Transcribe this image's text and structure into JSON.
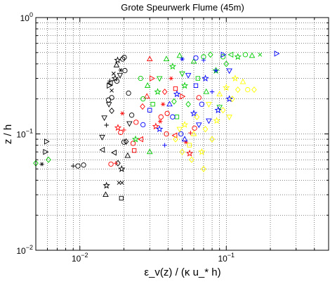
{
  "chart_data": {
    "type": "scatter",
    "title": "Grote Speurwerk Flume (45m)",
    "xlabel": "ε_v(z) / (κ u_* h)",
    "ylabel": "z / h",
    "x_scale": "log",
    "y_scale": "log",
    "xlim": [
      0.005,
      0.5
    ],
    "ylim": [
      0.01,
      1
    ],
    "x_ticks": [
      {
        "value": 0.01,
        "base": "10",
        "exp": "−2"
      },
      {
        "value": 0.1,
        "base": "10",
        "exp": "−1"
      }
    ],
    "y_ticks": [
      {
        "value": 0.01,
        "base": "10",
        "exp": "−2"
      },
      {
        "value": 0.1,
        "base": "10",
        "exp": "−1"
      },
      {
        "value": 1,
        "base": "10",
        "exp": "0"
      }
    ],
    "grid": true,
    "legend": "none",
    "colors": {
      "black": "#000000",
      "red": "#ff0000",
      "green": "#00cc00",
      "blue": "#0000ff",
      "yellow": "#ffff00"
    },
    "series": [
      {
        "color": "black",
        "points": [
          [
            0.0055,
            0.055,
            "asterisk"
          ],
          [
            0.0058,
            0.07,
            "triangle-right"
          ],
          [
            0.0059,
            0.086,
            "triangle-right"
          ],
          [
            0.009,
            0.053,
            "plus"
          ],
          [
            0.0097,
            0.053,
            "circle"
          ],
          [
            0.0106,
            0.054,
            "circle"
          ],
          [
            0.0152,
            0.036,
            "star"
          ],
          [
            0.015,
            0.03,
            "triangle-up"
          ],
          [
            0.0143,
            0.073,
            "triangle-left"
          ],
          [
            0.0142,
            0.094,
            "triangle-down"
          ],
          [
            0.0152,
            0.119,
            "plus"
          ],
          [
            0.0147,
            0.138,
            "triangle-down"
          ],
          [
            0.0165,
            0.158,
            "diamond"
          ],
          [
            0.0158,
            0.18,
            "triangle-down"
          ],
          [
            0.0157,
            0.196,
            "circle"
          ],
          [
            0.0165,
            0.205,
            "circle"
          ],
          [
            0.0165,
            0.236,
            "x"
          ],
          [
            0.0158,
            0.26,
            "triangle-right"
          ],
          [
            0.016,
            0.285,
            "plus"
          ],
          [
            0.0162,
            0.275,
            "triangle-left"
          ],
          [
            0.0174,
            0.3,
            "star"
          ],
          [
            0.0179,
            0.284,
            "circle"
          ],
          [
            0.0188,
            0.32,
            "triangle-down"
          ],
          [
            0.019,
            0.353,
            "asterisk"
          ],
          [
            0.0196,
            0.44,
            "circle"
          ],
          [
            0.0201,
            0.455,
            "circle"
          ],
          [
            0.0203,
            0.35,
            "circle"
          ],
          [
            0.0172,
            0.069,
            "triangle-left"
          ],
          [
            0.0182,
            0.056,
            "diamond"
          ],
          [
            0.0193,
            0.05,
            "star"
          ],
          [
            0.02,
            0.085,
            "circle"
          ],
          [
            0.0207,
            0.086,
            "diamond"
          ],
          [
            0.0212,
            0.065,
            "triangle-up"
          ],
          [
            0.0185,
            0.038,
            "x"
          ],
          [
            0.0194,
            0.038,
            "x"
          ],
          [
            0.0192,
            0.028,
            "square"
          ],
          [
            0.0218,
            0.123,
            "triangle-down"
          ],
          [
            0.0215,
            0.224,
            "circle"
          ],
          [
            0.0226,
            0.145,
            "circle"
          ],
          [
            0.017,
            0.33,
            "x"
          ],
          [
            0.0178,
            0.39,
            "triangle-up"
          ],
          [
            0.0181,
            0.43,
            "star"
          ]
        ]
      },
      {
        "color": "red",
        "points": [
          [
            0.0163,
            0.055,
            "circle"
          ],
          [
            0.0176,
            0.056,
            "plus"
          ],
          [
            0.0182,
            0.113,
            "star"
          ],
          [
            0.019,
            0.103,
            "circle"
          ],
          [
            0.02,
            0.108,
            "plus"
          ],
          [
            0.0195,
            0.15,
            "asterisk"
          ],
          [
            0.0231,
            0.083,
            "circle"
          ],
          [
            0.0235,
            0.072,
            "square"
          ],
          [
            0.0262,
            0.09,
            "triangle-left"
          ],
          [
            0.0242,
            0.126,
            "circle"
          ],
          [
            0.0268,
            0.172,
            "diamond"
          ],
          [
            0.0287,
            0.21,
            "triangle-up"
          ],
          [
            0.031,
            0.3,
            "triangle-right"
          ],
          [
            0.03,
            0.44,
            "triangle-up"
          ],
          [
            0.0354,
            0.128,
            "asterisk"
          ],
          [
            0.0358,
            0.14,
            "circle"
          ],
          [
            0.033,
            0.116,
            "star"
          ],
          [
            0.037,
            0.18,
            "asterisk"
          ],
          [
            0.038,
            0.23,
            "diamond"
          ],
          [
            0.042,
            0.3,
            "asterisk"
          ],
          [
            0.0395,
            0.15,
            "circle"
          ],
          [
            0.039,
            0.1,
            "circle"
          ],
          [
            0.0447,
            0.097,
            "triangle-left"
          ],
          [
            0.053,
            0.085,
            "asterisk"
          ],
          [
            0.0562,
            0.068,
            "star"
          ],
          [
            0.057,
            0.102,
            "plus"
          ],
          [
            0.0607,
            0.112,
            "circle"
          ],
          [
            0.045,
            0.245,
            "square"
          ],
          [
            0.05,
            0.21,
            "triangle-right"
          ],
          [
            0.065,
            0.205,
            "circle"
          ]
        ]
      },
      {
        "color": "green",
        "points": [
          [
            0.005,
            0.056,
            "diamond"
          ],
          [
            0.0061,
            0.06,
            "diamond"
          ],
          [
            0.024,
            0.09,
            "star"
          ],
          [
            0.027,
            0.2,
            "circle"
          ],
          [
            0.029,
            0.26,
            "triangle-up"
          ],
          [
            0.0315,
            0.18,
            "square"
          ],
          [
            0.034,
            0.23,
            "star"
          ],
          [
            0.035,
            0.3,
            "triangle-down"
          ],
          [
            0.039,
            0.44,
            "triangle-up"
          ],
          [
            0.043,
            0.38,
            "star"
          ],
          [
            0.044,
            0.19,
            "diamond"
          ],
          [
            0.046,
            0.14,
            "square"
          ],
          [
            0.05,
            0.33,
            "triangle-down"
          ],
          [
            0.052,
            0.26,
            "star"
          ],
          [
            0.055,
            0.18,
            "diamond"
          ],
          [
            0.06,
            0.42,
            "triangle-up"
          ],
          [
            0.064,
            0.3,
            "square"
          ],
          [
            0.07,
            0.46,
            "circle"
          ],
          [
            0.073,
            0.23,
            "triangle-up"
          ],
          [
            0.078,
            0.48,
            "diamond"
          ],
          [
            0.085,
            0.35,
            "star"
          ],
          [
            0.09,
            0.17,
            "triangle-down"
          ],
          [
            0.1,
            0.4,
            "diamond"
          ],
          [
            0.108,
            0.48,
            "triangle-left"
          ],
          [
            0.12,
            0.46,
            "star"
          ],
          [
            0.135,
            0.48,
            "circle"
          ],
          [
            0.15,
            0.47,
            "triangle-up"
          ],
          [
            0.17,
            0.48,
            "x"
          ],
          [
            0.03,
            0.07,
            "triangle-up"
          ],
          [
            0.026,
            0.3,
            "circle"
          ],
          [
            0.095,
            0.46,
            "circle"
          ],
          [
            0.048,
            0.47,
            "triangle-up"
          ]
        ]
      },
      {
        "color": "blue",
        "points": [
          [
            0.027,
            0.12,
            "circle"
          ],
          [
            0.03,
            0.16,
            "square"
          ],
          [
            0.035,
            0.11,
            "star"
          ],
          [
            0.038,
            0.08,
            "plus"
          ],
          [
            0.041,
            0.18,
            "triangle-up"
          ],
          [
            0.043,
            0.14,
            "circle"
          ],
          [
            0.046,
            0.22,
            "star"
          ],
          [
            0.049,
            0.1,
            "circle"
          ],
          [
            0.052,
            0.09,
            "triangle-up"
          ],
          [
            0.055,
            0.32,
            "triangle-down"
          ],
          [
            0.06,
            0.15,
            "star"
          ],
          [
            0.062,
            0.26,
            "square"
          ],
          [
            0.065,
            0.12,
            "triangle-down"
          ],
          [
            0.068,
            0.18,
            "circle"
          ],
          [
            0.072,
            0.3,
            "star"
          ],
          [
            0.076,
            0.13,
            "triangle-down"
          ],
          [
            0.08,
            0.23,
            "plus"
          ],
          [
            0.085,
            0.35,
            "asterisk"
          ],
          [
            0.088,
            0.16,
            "star"
          ],
          [
            0.095,
            0.48,
            "triangle-right"
          ],
          [
            0.105,
            0.35,
            "triangle-down"
          ],
          [
            0.05,
            0.44,
            "asterisk"
          ],
          [
            0.062,
            0.45,
            "circle"
          ],
          [
            0.22,
            0.49,
            "triangle-right"
          ],
          [
            0.105,
            0.2,
            "star"
          ],
          [
            0.07,
            0.43,
            "plus"
          ]
        ]
      },
      {
        "color": "yellow",
        "points": [
          [
            0.045,
            0.09,
            "diamond"
          ],
          [
            0.048,
            0.11,
            "triangle-down"
          ],
          [
            0.05,
            0.07,
            "diamond"
          ],
          [
            0.052,
            0.12,
            "star"
          ],
          [
            0.056,
            0.08,
            "square"
          ],
          [
            0.06,
            0.1,
            "triangle-up"
          ],
          [
            0.063,
            0.14,
            "diamond"
          ],
          [
            0.068,
            0.07,
            "star"
          ],
          [
            0.072,
            0.11,
            "diamond"
          ],
          [
            0.076,
            0.18,
            "triangle-down"
          ],
          [
            0.08,
            0.09,
            "diamond"
          ],
          [
            0.086,
            0.13,
            "star"
          ],
          [
            0.09,
            0.22,
            "triangle-up"
          ],
          [
            0.095,
            0.16,
            "diamond"
          ],
          [
            0.1,
            0.25,
            "star"
          ],
          [
            0.105,
            0.14,
            "triangle-down"
          ],
          [
            0.11,
            0.2,
            "diamond"
          ],
          [
            0.115,
            0.3,
            "star"
          ],
          [
            0.12,
            0.24,
            "diamond"
          ],
          [
            0.13,
            0.28,
            "triangle-up"
          ],
          [
            0.14,
            0.24,
            "circle"
          ],
          [
            0.155,
            0.24,
            "diamond"
          ],
          [
            0.07,
            0.05,
            "diamond"
          ],
          [
            0.058,
            0.06,
            "diamond"
          ]
        ]
      }
    ]
  }
}
